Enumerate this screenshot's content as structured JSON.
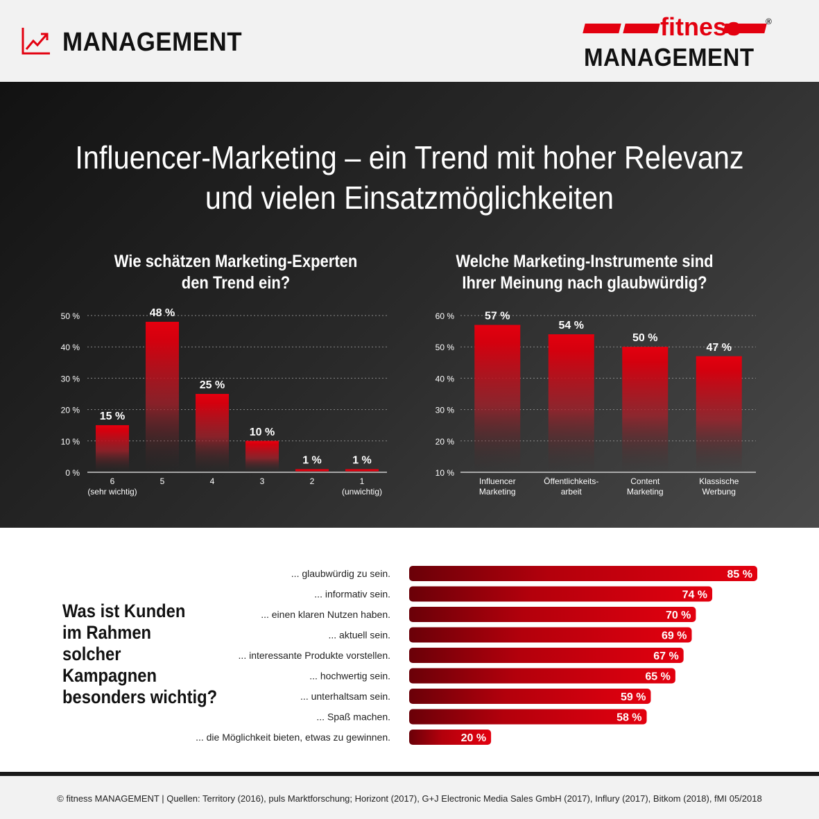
{
  "header": {
    "section_title": "MANAGEMENT",
    "brand_top": "fitness",
    "brand_bottom": "MANAGEMENT",
    "brand_mark": "®"
  },
  "title_line1": "Influencer-Marketing – ein Trend mit hoher Relevanz",
  "title_line2": "und vielen Einsatzmöglichkeiten",
  "colors": {
    "accent": "#e3000f",
    "dark": "#1f1f1f"
  },
  "chart_data": [
    {
      "type": "bar",
      "title_line1": "Wie schätzen Marketing-Experten",
      "title_line2": "den Trend ein?",
      "categories": [
        "6",
        "5",
        "4",
        "3",
        "2",
        "1"
      ],
      "category_sublabels": [
        "(sehr wichtig)",
        "",
        "",
        "",
        "",
        "(unwichtig)"
      ],
      "values": [
        15,
        48,
        25,
        10,
        1,
        1
      ],
      "value_labels": [
        "15 %",
        "48 %",
        "25 %",
        "10 %",
        "1 %",
        "1 %"
      ],
      "ylim": [
        0,
        50
      ],
      "yticks": [
        "0 %",
        "10 %",
        "20 %",
        "30 %",
        "40 %",
        "50 %"
      ],
      "grid": true
    },
    {
      "type": "bar",
      "title_line1": "Welche Marketing-Instrumente sind",
      "title_line2": "Ihrer Meinung nach glaubwürdig?",
      "categories": [
        [
          "Influencer",
          "Marketing"
        ],
        [
          "Öffentlichkeits-",
          "arbeit"
        ],
        [
          "Content",
          "Marketing"
        ],
        [
          "Klassische",
          "Werbung"
        ]
      ],
      "values": [
        57,
        54,
        50,
        47
      ],
      "value_labels": [
        "57 %",
        "54 %",
        "50 %",
        "47 %"
      ],
      "ylim": [
        10,
        60
      ],
      "yticks": [
        "10 %",
        "20 %",
        "30 %",
        "40 %",
        "50 %",
        "60 %"
      ],
      "grid": true
    },
    {
      "type": "bar",
      "orientation": "horizontal",
      "categories": [
        "... glaubwürdig zu sein.",
        "... informativ sein.",
        "... einen klaren Nutzen haben.",
        "... aktuell sein.",
        "... interessante Produkte vorstellen.",
        "... hochwertig sein.",
        "... unterhaltsam sein.",
        "... Spaß machen.",
        "... die Möglichkeit bieten, etwas zu gewinnen."
      ],
      "values": [
        85,
        74,
        70,
        69,
        67,
        65,
        59,
        58,
        20
      ],
      "value_labels": [
        "85 %",
        "74 %",
        "70 %",
        "69 %",
        "67 %",
        "65 %",
        "59 %",
        "58 %",
        "20 %"
      ],
      "xlim": [
        0,
        85
      ]
    }
  ],
  "question_lines": [
    "Was ist Kunden",
    "im Rahmen",
    "solcher",
    "Kampagnen",
    "besonders wichtig?"
  ],
  "footer": "© fitness MANAGEMENT  |  Quellen: Territory (2016), puls Marktforschung; Horizont (2017), G+J Electronic Media Sales GmbH (2017), Influry (2017), Bitkom (2018), fMI 05/2018"
}
